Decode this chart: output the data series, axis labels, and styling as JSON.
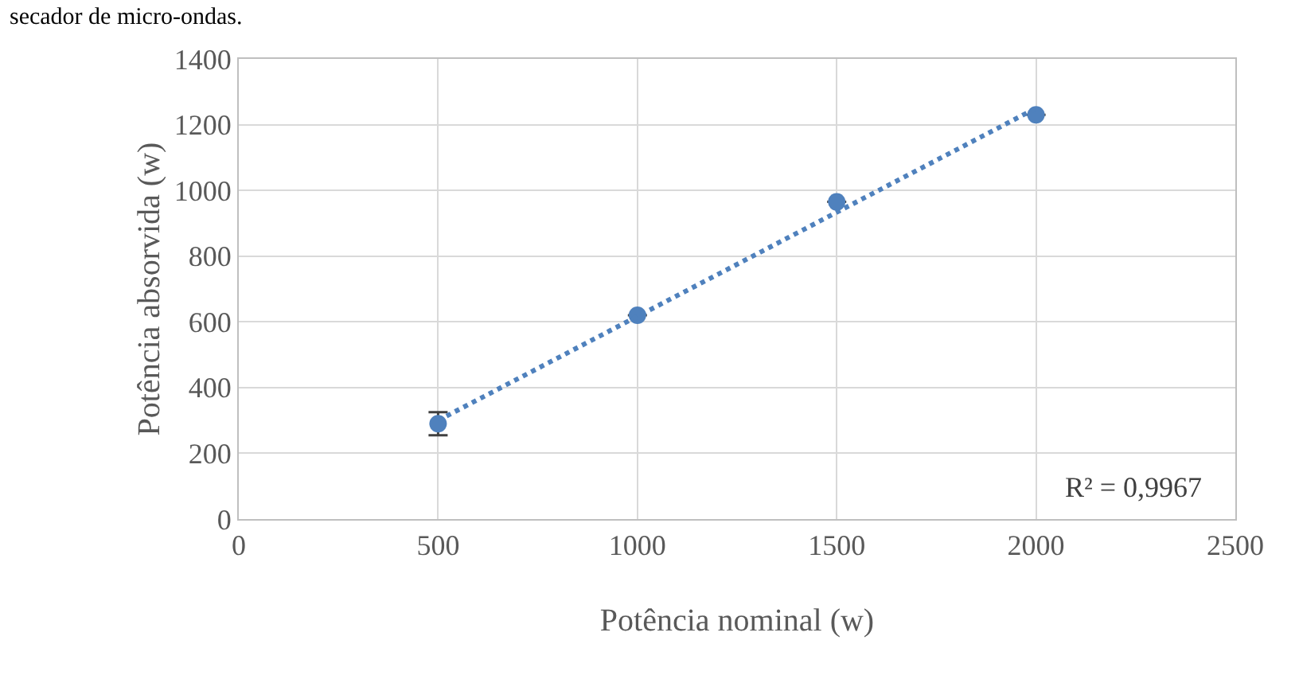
{
  "chart_data": {
    "type": "scatter",
    "annotations": [
      "secador de micro-ondas.",
      "R² = 0,9967"
    ],
    "xlabel": "Potência nominal (w)",
    "ylabel": "Potência absorvida (w)",
    "xlim": [
      0,
      2500
    ],
    "xticks": [
      0,
      500,
      1000,
      1500,
      2000,
      2500
    ],
    "ylim": [
      0,
      1400
    ],
    "yticks": [
      0,
      200,
      400,
      600,
      800,
      1000,
      1200,
      1400
    ],
    "grid": true,
    "series": [
      {
        "color": "#4f81bd",
        "marker": "circle",
        "x": [
          500,
          1000,
          1500,
          2000
        ],
        "values": [
          290,
          620,
          965,
          1230
        ],
        "errors": [
          35,
          null,
          null,
          null
        ]
      },
      {
        "type": "line",
        "color": "#4f81bd",
        "line_style": "dotted",
        "marker": "none",
        "x": [
          500,
          2000
        ],
        "values": [
          300,
          1250
        ]
      }
    ]
  }
}
